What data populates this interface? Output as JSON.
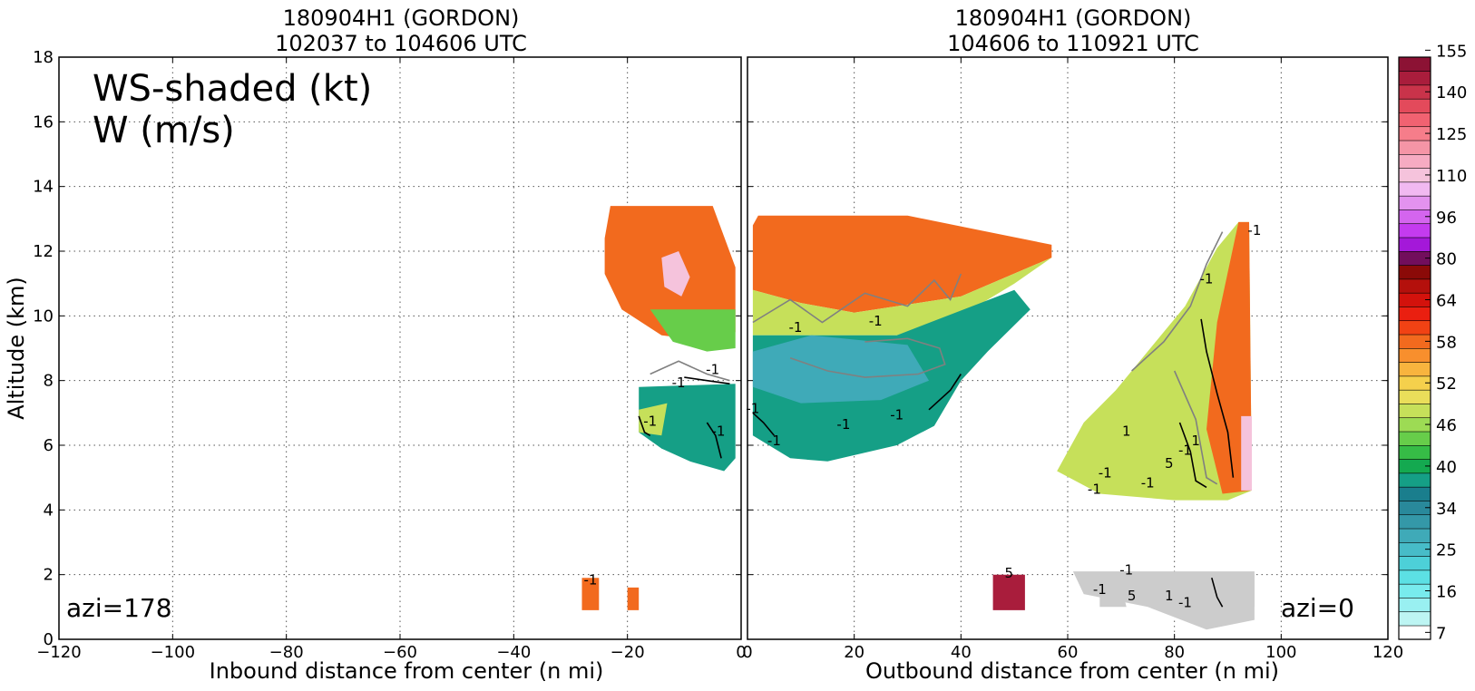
{
  "chart_data": [
    {
      "type": "heatmap",
      "title": [
        "180904H1 (GORDON)",
        "102037 to 104606 UTC"
      ],
      "xlabel": "Inbound distance from center (n mi)",
      "ylabel": "Altitude (km)",
      "xlim": [
        -120,
        0
      ],
      "ylim": [
        0,
        18
      ],
      "xticks": [
        "−120",
        "−100",
        "−80",
        "−60",
        "−40",
        "−20",
        "0"
      ],
      "yticks": [
        "0",
        "2",
        "4",
        "6",
        "8",
        "10",
        "12",
        "14",
        "16",
        "18"
      ],
      "grid": true,
      "annotations": [
        "WS-shaded (kt)",
        "W (m/s)",
        "azi=178"
      ],
      "contour_labels": [
        "-1",
        "-1",
        "-1",
        "-1",
        "-1"
      ],
      "regions": [
        {
          "shade": 21,
          "polygon": [
            [
              -23,
              13.4
            ],
            [
              -5,
              13.4
            ],
            [
              -1,
              11.5
            ],
            [
              -1,
              9.5
            ],
            [
              -5,
              9.2
            ],
            [
              -14,
              9.4
            ],
            [
              -21,
              10.2
            ],
            [
              -24,
              11.3
            ],
            [
              -24,
              12.4
            ]
          ]
        },
        {
          "shade": 14,
          "polygon": [
            [
              -16,
              10.2
            ],
            [
              -1,
              10.2
            ],
            [
              -1,
              9.0
            ],
            [
              -6,
              8.9
            ],
            [
              -12,
              9.2
            ]
          ]
        },
        {
          "shade": 33,
          "polygon": [
            [
              -14,
              11.8
            ],
            [
              -11,
              12.0
            ],
            [
              -9,
              11.2
            ],
            [
              -10.5,
              10.6
            ],
            [
              -13.5,
              10.9
            ]
          ]
        },
        {
          "shade": 11,
          "polygon": [
            [
              -18,
              7.8
            ],
            [
              -1,
              7.9
            ],
            [
              -1,
              5.6
            ],
            [
              -3,
              5.2
            ],
            [
              -9,
              5.5
            ],
            [
              -14,
              5.9
            ],
            [
              -18,
              6.4
            ]
          ]
        },
        {
          "shade": 16,
          "polygon": [
            [
              -18,
              7.1
            ],
            [
              -13,
              7.3
            ],
            [
              -14,
              6.3
            ],
            [
              -18,
              6.4
            ]
          ]
        },
        {
          "shade": 21,
          "polygon": [
            [
              -28,
              1.9
            ],
            [
              -25,
              1.9
            ],
            [
              -25,
              0.9
            ],
            [
              -28,
              0.9
            ]
          ]
        },
        {
          "shade": 21,
          "polygon": [
            [
              -20,
              1.6
            ],
            [
              -18,
              1.6
            ],
            [
              -18,
              0.9
            ],
            [
              -20,
              0.9
            ]
          ]
        }
      ],
      "contours": [
        {
          "color": "#808080",
          "points": [
            [
              -16,
              8.2
            ],
            [
              -11,
              8.6
            ],
            [
              -6,
              8.2
            ],
            [
              -2,
              8.0
            ]
          ]
        },
        {
          "color": "#000000",
          "points": [
            [
              -10,
              8.1
            ],
            [
              -6,
              8.0
            ],
            [
              -2,
              7.9
            ]
          ]
        },
        {
          "color": "#000000",
          "points": [
            [
              -18,
              6.9
            ],
            [
              -17,
              6.4
            ],
            [
              -16,
              6.3
            ]
          ]
        },
        {
          "color": "#000000",
          "points": [
            [
              -6,
              6.7
            ],
            [
              -4.5,
              6.3
            ],
            [
              -3.5,
              5.6
            ]
          ]
        }
      ]
    },
    {
      "type": "heatmap",
      "title": [
        "180904H1 (GORDON)",
        "104606 to 110921 UTC"
      ],
      "xlabel": "Outbound distance from center (n mi)",
      "ylabel": "",
      "xlim": [
        0,
        120
      ],
      "ylim": [
        0,
        18
      ],
      "xticks": [
        "0",
        "20",
        "40",
        "60",
        "80",
        "100",
        "120"
      ],
      "grid": true,
      "annotations": [
        "azi=0"
      ],
      "contour_labels": [
        "-1",
        "-1",
        "-1",
        "-1",
        "-1",
        "-1",
        "1",
        "1",
        "-1",
        "5",
        "-1",
        "-1",
        "-1",
        "-1",
        "-1",
        "5",
        "1",
        "-1",
        "5",
        "-1",
        "-1"
      ],
      "regions": [
        {
          "shade": 21,
          "polygon": [
            [
              2,
              13.1
            ],
            [
              30,
              13.1
            ],
            [
              57,
              12.2
            ],
            [
              57,
              11.8
            ],
            [
              40,
              10.6
            ],
            [
              20,
              10.1
            ],
            [
              10,
              10.4
            ],
            [
              1,
              10.8
            ],
            [
              1,
              12.8
            ]
          ]
        },
        {
          "shade": 16,
          "polygon": [
            [
              57,
              11.8
            ],
            [
              50,
              11.0
            ],
            [
              40,
              10.0
            ],
            [
              28,
              9.4
            ],
            [
              15,
              9.4
            ],
            [
              1,
              9.4
            ],
            [
              1,
              10.8
            ],
            [
              10,
              10.4
            ],
            [
              20,
              10.1
            ],
            [
              40,
              10.6
            ]
          ]
        },
        {
          "shade": 11,
          "polygon": [
            [
              1,
              9.4
            ],
            [
              28,
              9.4
            ],
            [
              50,
              10.8
            ],
            [
              53,
              10.2
            ],
            [
              45,
              8.9
            ],
            [
              40,
              8.0
            ],
            [
              35,
              6.6
            ],
            [
              28,
              6.0
            ],
            [
              15,
              5.5
            ],
            [
              8,
              5.6
            ],
            [
              1,
              6.3
            ]
          ]
        },
        {
          "shade": 7,
          "polygon": [
            [
              1,
              8.9
            ],
            [
              12,
              9.4
            ],
            [
              30,
              9.1
            ],
            [
              34,
              8.0
            ],
            [
              25,
              7.4
            ],
            [
              10,
              7.3
            ],
            [
              1,
              7.8
            ]
          ]
        },
        {
          "shade": 16,
          "polygon": [
            [
              92,
              12.9
            ],
            [
              94,
              12.9
            ],
            [
              94.5,
              4.6
            ],
            [
              90,
              4.3
            ],
            [
              80,
              4.3
            ],
            [
              66,
              4.5
            ],
            [
              58,
              5.2
            ],
            [
              63,
              6.7
            ],
            [
              69,
              7.7
            ],
            [
              76,
              9.1
            ],
            [
              82,
              10.3
            ],
            [
              88,
              12.1
            ]
          ]
        },
        {
          "shade": 21,
          "polygon": [
            [
              92,
              12.9
            ],
            [
              94,
              12.9
            ],
            [
              94.5,
              4.6
            ],
            [
              89,
              4.5
            ],
            [
              86,
              6.5
            ],
            [
              88,
              9.8
            ]
          ]
        },
        {
          "shade": 33,
          "polygon": [
            [
              92.5,
              6.9
            ],
            [
              94.5,
              6.9
            ],
            [
              94.5,
              4.6
            ],
            [
              92.5,
              4.6
            ]
          ]
        },
        {
          "shade": 40,
          "polygon": [
            [
              46,
              2.0
            ],
            [
              52,
              2.0
            ],
            [
              52,
              0.9
            ],
            [
              46,
              0.9
            ]
          ]
        },
        {
          "shade": 43,
          "polygon": [
            [
              61,
              2.1
            ],
            [
              95,
              2.1
            ],
            [
              95,
              0.6
            ],
            [
              86,
              0.3
            ],
            [
              75,
              1.0
            ],
            [
              63,
              1.4
            ]
          ]
        },
        {
          "shade": 48,
          "polygon": [
            [
              66,
              1.7
            ],
            [
              70,
              1.7
            ],
            [
              71,
              1.0
            ],
            [
              66,
              1.0
            ]
          ]
        },
        {
          "shade": 46,
          "polygon": [
            [
              88,
              2.0
            ],
            [
              95,
              2.0
            ],
            [
              95,
              1.0
            ],
            [
              88,
              1.0
            ]
          ]
        }
      ],
      "contours": [
        {
          "color": "#808080",
          "points": [
            [
              1,
              9.8
            ],
            [
              8,
              10.5
            ],
            [
              14,
              9.8
            ],
            [
              22,
              10.7
            ],
            [
              30,
              10.3
            ],
            [
              35,
              11.1
            ],
            [
              38,
              10.5
            ],
            [
              40,
              11.3
            ]
          ]
        },
        {
          "color": "#808080",
          "points": [
            [
              8,
              8.7
            ],
            [
              15,
              8.3
            ],
            [
              22,
              8.1
            ],
            [
              32,
              8.2
            ],
            [
              37,
              8.5
            ],
            [
              36,
              9.0
            ],
            [
              30,
              9.3
            ],
            [
              22,
              9.2
            ]
          ]
        },
        {
          "color": "#808080",
          "points": [
            [
              72,
              8.3
            ],
            [
              78,
              9.2
            ],
            [
              83,
              10.3
            ],
            [
              86,
              11.6
            ],
            [
              89,
              12.6
            ]
          ]
        },
        {
          "color": "#808080",
          "points": [
            [
              80,
              8.3
            ],
            [
              84,
              6.8
            ],
            [
              86,
              5.0
            ],
            [
              88,
              4.8
            ]
          ]
        },
        {
          "color": "#000000",
          "points": [
            [
              85,
              9.9
            ],
            [
              86,
              8.9
            ],
            [
              88,
              7.6
            ],
            [
              90,
              6.4
            ],
            [
              91,
              5.0
            ]
          ]
        },
        {
          "color": "#000000",
          "points": [
            [
              81,
              6.7
            ],
            [
              83,
              5.8
            ],
            [
              84,
              4.9
            ],
            [
              86,
              4.7
            ]
          ]
        },
        {
          "color": "#000000",
          "points": [
            [
              87,
              1.9
            ],
            [
              88,
              1.3
            ],
            [
              89,
              1.0
            ]
          ]
        },
        {
          "color": "#000000",
          "points": [
            [
              1,
              7.0
            ],
            [
              3,
              6.7
            ],
            [
              5,
              6.3
            ]
          ]
        },
        {
          "color": "#000000",
          "points": [
            [
              34,
              7.1
            ],
            [
              38,
              7.7
            ],
            [
              40,
              8.2
            ]
          ]
        }
      ]
    }
  ],
  "colorbar": {
    "ticks": [
      "7",
      "16",
      "25",
      "34",
      "40",
      "46",
      "52",
      "58",
      "64",
      "80",
      "96",
      "110",
      "125",
      "140",
      "155"
    ],
    "colors": [
      "#ffffff",
      "#bdf5f3",
      "#99f0f1",
      "#78ebed",
      "#5ce0e4",
      "#4dd0d8",
      "#47bcc8",
      "#3faab8",
      "#3498a8",
      "#29899b",
      "#1a7e8d",
      "#159f86",
      "#14a950",
      "#36bc46",
      "#67cd4a",
      "#9ddb54",
      "#c6e05a",
      "#eade5a",
      "#f5d04c",
      "#f8b43e",
      "#f88f2d",
      "#f26a1e",
      "#f14214",
      "#ea1f10",
      "#d3120c",
      "#b4100c",
      "#8b0a08",
      "#720e5c",
      "#a418d9",
      "#c43bef",
      "#d465ee",
      "#e392ef",
      "#f1b9f1",
      "#f5c3dc",
      "#f6abc2",
      "#f595a6",
      "#f67d8a",
      "#f16271",
      "#e34a5b",
      "#c9334a",
      "#a91d3c",
      "#8c1234"
    ]
  }
}
